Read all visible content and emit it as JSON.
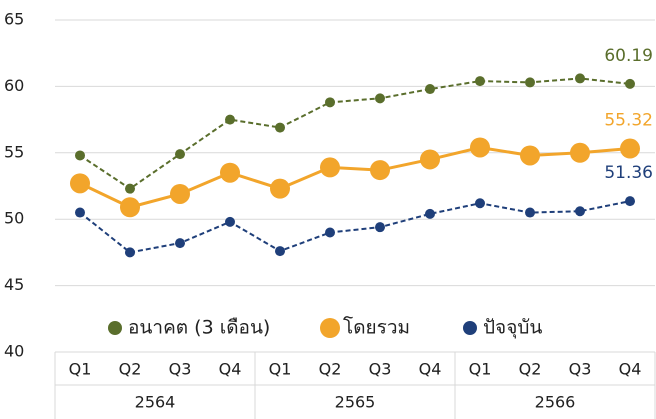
{
  "chart_data": {
    "type": "line",
    "categories": [
      "Q1",
      "Q2",
      "Q3",
      "Q4",
      "Q1",
      "Q2",
      "Q3",
      "Q4",
      "Q1",
      "Q2",
      "Q3",
      "Q4"
    ],
    "x_groups": [
      "2564",
      "2565",
      "2566"
    ],
    "ylim": [
      40,
      65
    ],
    "yticks": [
      40,
      45,
      50,
      55,
      60,
      65
    ],
    "grid": true,
    "legend": "bottom",
    "series": [
      {
        "name": "อนาคต (3 เดือน)",
        "color": "#5a6e2c",
        "line_style": "dashed",
        "values": [
          54.8,
          52.3,
          54.9,
          57.5,
          56.9,
          58.8,
          59.1,
          59.8,
          60.4,
          60.3,
          60.6,
          60.19
        ],
        "value_labels": [
          null,
          null,
          null,
          null,
          null,
          null,
          null,
          null,
          null,
          null,
          null,
          "60.19"
        ]
      },
      {
        "name": "โดยรวม",
        "color": "#f2a52b",
        "line_style": "solid",
        "values": [
          52.7,
          50.9,
          51.9,
          53.5,
          52.3,
          53.9,
          53.7,
          54.5,
          55.4,
          54.8,
          55.0,
          55.32
        ],
        "value_labels": [
          null,
          null,
          null,
          null,
          null,
          null,
          null,
          null,
          null,
          null,
          null,
          "55.32"
        ]
      },
      {
        "name": "ปัจจุบัน",
        "color": "#1f3f7a",
        "line_style": "dashed",
        "values": [
          50.5,
          47.5,
          48.2,
          49.8,
          47.6,
          49.0,
          49.4,
          50.4,
          51.2,
          50.5,
          50.6,
          51.36
        ],
        "value_labels": [
          null,
          null,
          null,
          null,
          null,
          null,
          null,
          null,
          null,
          null,
          null,
          "51.36"
        ]
      }
    ]
  }
}
